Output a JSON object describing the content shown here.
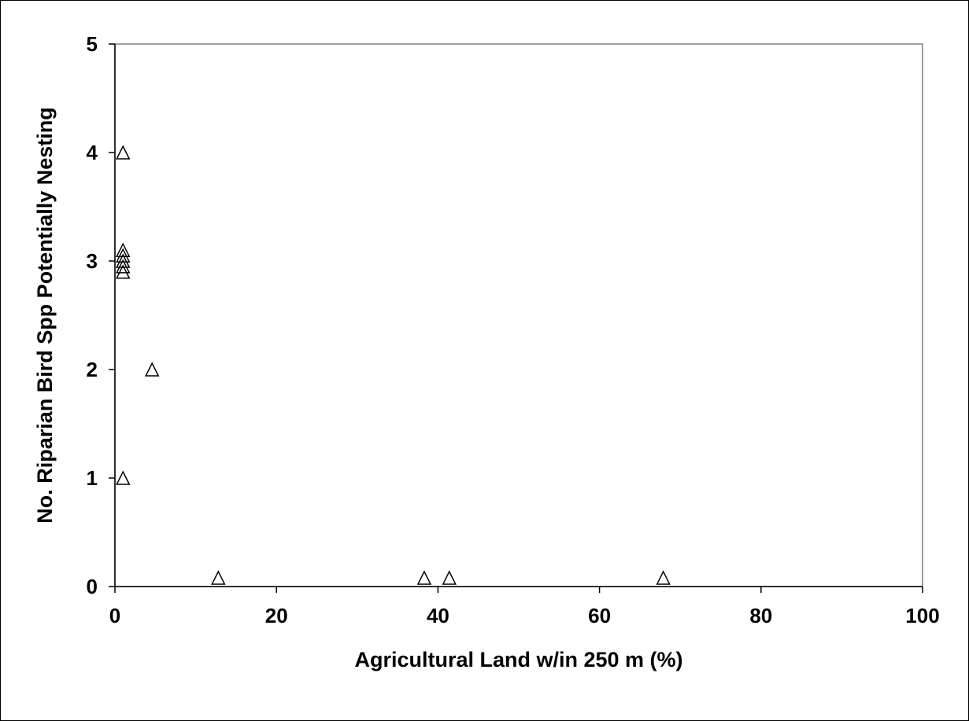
{
  "chart_data": {
    "type": "scatter",
    "xlabel": "Agricultural Land w/in 250 m (%)",
    "ylabel": "No. Riparian Bird Spp Potentially Nesting",
    "xlim": [
      0,
      100
    ],
    "ylim": [
      0,
      5
    ],
    "x_ticks": [
      0,
      20,
      40,
      60,
      80,
      100
    ],
    "y_ticks": [
      0,
      1,
      2,
      3,
      4,
      5
    ],
    "grid": false,
    "marker": "open-triangle",
    "marker_color": "#000000",
    "series": [
      {
        "points": [
          {
            "x": 1,
            "y": 4
          },
          {
            "x": 1,
            "y": 3.1
          },
          {
            "x": 1,
            "y": 3.05
          },
          {
            "x": 1,
            "y": 3
          },
          {
            "x": 1,
            "y": 2.95
          },
          {
            "x": 1,
            "y": 2.9
          },
          {
            "x": 4.6,
            "y": 2
          },
          {
            "x": 1,
            "y": 1
          },
          {
            "x": 12.8,
            "y": 0.08
          },
          {
            "x": 38.3,
            "y": 0.08
          },
          {
            "x": 41.4,
            "y": 0.08
          },
          {
            "x": 67.9,
            "y": 0.08
          }
        ]
      }
    ]
  }
}
